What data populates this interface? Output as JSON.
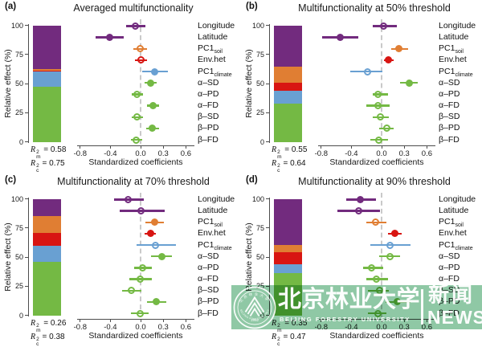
{
  "chart_data": {
    "type": "combo-stackedbar-forestplot",
    "x_axis": {
      "label": "Standardized coefficients",
      "ticks": [
        -0.8,
        -0.4,
        0.0,
        0.3,
        0.6
      ],
      "tick_labels": [
        "-0.8",
        "-0.4",
        "0.0",
        "0.3",
        "0.6"
      ],
      "range": [
        -0.9,
        0.65
      ]
    },
    "y_axis_bar": {
      "label": "Relative effect (%)",
      "ticks": [
        0,
        25,
        50,
        75,
        100
      ]
    },
    "r2_syntax": {
      "base": "R",
      "sup": "2",
      "sub_marginal": "m",
      "sub_conditional": "c",
      "eq": "="
    },
    "colors": {
      "green": "#74B944",
      "blue": "#69A0D2",
      "red": "#D81512",
      "orange": "#E07E33",
      "purple": "#722B7E",
      "zero_line": "#C9C9C9",
      "axis": "#4D4D4D"
    },
    "predictors": [
      {
        "label": "Longitude",
        "sub": "",
        "color": "purple"
      },
      {
        "label": "Latitude",
        "sub": "",
        "color": "purple"
      },
      {
        "label": "PC1",
        "sub": "soil",
        "color": "orange"
      },
      {
        "label": "Env.het",
        "sub": "",
        "color": "red"
      },
      {
        "label": "PC1",
        "sub": "climate",
        "color": "blue"
      },
      {
        "label": "α–SD",
        "sub": "",
        "color": "green"
      },
      {
        "label": "α–PD",
        "sub": "",
        "color": "green"
      },
      {
        "label": "α–FD",
        "sub": "",
        "color": "green"
      },
      {
        "label": "β–SD",
        "sub": "",
        "color": "green"
      },
      {
        "label": "β–PD",
        "sub": "",
        "color": "green"
      },
      {
        "label": "β–FD",
        "sub": "",
        "color": "green"
      }
    ],
    "panels": [
      {
        "tag": "(a)",
        "title": "Averaged multifunctionality",
        "r2_marginal": "0.58",
        "r2_conditional": "0.75",
        "bar_bottom_to_top": [
          {
            "key": "green",
            "pct": 47
          },
          {
            "key": "blue",
            "pct": 13.3
          },
          {
            "key": "red",
            "pct": 0.7
          },
          {
            "key": "orange",
            "pct": 1.5
          },
          {
            "key": "purple",
            "pct": 37.5
          }
        ],
        "effects": [
          {
            "est": -0.07,
            "lo": -0.19,
            "hi": 0.06,
            "filled": false
          },
          {
            "est": -0.41,
            "lo": -0.6,
            "hi": -0.22,
            "filled": true
          },
          {
            "est": -0.01,
            "lo": -0.1,
            "hi": 0.08,
            "filled": false
          },
          {
            "est": 0.0,
            "lo": -0.07,
            "hi": 0.08,
            "filled": false
          },
          {
            "est": 0.19,
            "lo": 0.02,
            "hi": 0.36,
            "filled": true
          },
          {
            "est": 0.13,
            "lo": 0.05,
            "hi": 0.21,
            "filled": true
          },
          {
            "est": -0.05,
            "lo": -0.12,
            "hi": 0.03,
            "filled": false
          },
          {
            "est": 0.17,
            "lo": 0.08,
            "hi": 0.25,
            "filled": true
          },
          {
            "est": -0.05,
            "lo": -0.12,
            "hi": 0.03,
            "filled": false
          },
          {
            "est": 0.15,
            "lo": 0.07,
            "hi": 0.24,
            "filled": true
          },
          {
            "est": -0.06,
            "lo": -0.13,
            "hi": 0.02,
            "filled": false
          }
        ]
      },
      {
        "tag": "(b)",
        "title": "Multifunctionality at 50% threshold",
        "r2_marginal": "0.55",
        "r2_conditional": "0.64",
        "bar_bottom_to_top": [
          {
            "key": "green",
            "pct": 33
          },
          {
            "key": "blue",
            "pct": 10.5
          },
          {
            "key": "red",
            "pct": 7
          },
          {
            "key": "orange",
            "pct": 14
          },
          {
            "key": "purple",
            "pct": 35.5
          }
        ],
        "effects": [
          {
            "est": 0.03,
            "lo": -0.12,
            "hi": 0.2,
            "filled": false
          },
          {
            "est": -0.55,
            "lo": -0.79,
            "hi": -0.31,
            "filled": true
          },
          {
            "est": 0.23,
            "lo": 0.13,
            "hi": 0.35,
            "filled": true
          },
          {
            "est": 0.09,
            "lo": 0.03,
            "hi": 0.16,
            "filled": true
          },
          {
            "est": -0.19,
            "lo": -0.42,
            "hi": 0.01,
            "filled": false
          },
          {
            "est": 0.37,
            "lo": 0.24,
            "hi": 0.48,
            "filled": true
          },
          {
            "est": -0.05,
            "lo": -0.12,
            "hi": 0.08,
            "filled": false
          },
          {
            "est": -0.05,
            "lo": -0.2,
            "hi": 0.11,
            "filled": false
          },
          {
            "est": -0.02,
            "lo": -0.12,
            "hi": 0.1,
            "filled": false
          },
          {
            "est": 0.07,
            "lo": -0.03,
            "hi": 0.16,
            "filled": false
          },
          {
            "est": -0.04,
            "lo": -0.15,
            "hi": 0.08,
            "filled": false
          }
        ]
      },
      {
        "tag": "(c)",
        "title": "Multifunctionality at 70% threshold",
        "r2_marginal": "0.26",
        "r2_conditional": "0.38",
        "bar_bottom_to_top": [
          {
            "key": "green",
            "pct": 46
          },
          {
            "key": "blue",
            "pct": 13.5
          },
          {
            "key": "red",
            "pct": 11
          },
          {
            "key": "orange",
            "pct": 15
          },
          {
            "key": "purple",
            "pct": 14.5
          }
        ],
        "effects": [
          {
            "est": -0.16,
            "lo": -0.35,
            "hi": 0.04,
            "filled": false
          },
          {
            "est": 0.0,
            "lo": -0.28,
            "hi": 0.32,
            "filled": false
          },
          {
            "est": 0.19,
            "lo": 0.06,
            "hi": 0.31,
            "filled": true
          },
          {
            "est": 0.13,
            "lo": 0.05,
            "hi": 0.2,
            "filled": true
          },
          {
            "est": 0.2,
            "lo": -0.05,
            "hi": 0.47,
            "filled": false
          },
          {
            "est": 0.28,
            "lo": 0.14,
            "hi": 0.42,
            "filled": true
          },
          {
            "est": 0.03,
            "lo": -0.09,
            "hi": 0.15,
            "filled": false
          },
          {
            "est": -0.01,
            "lo": -0.15,
            "hi": 0.15,
            "filled": false
          },
          {
            "est": -0.12,
            "lo": -0.25,
            "hi": 0.01,
            "filled": false
          },
          {
            "est": 0.21,
            "lo": 0.09,
            "hi": 0.34,
            "filled": true
          },
          {
            "est": -0.01,
            "lo": -0.13,
            "hi": 0.11,
            "filled": false
          }
        ]
      },
      {
        "tag": "(d)",
        "title": "Multifunctionality at 90% threshold",
        "r2_marginal": "0.35",
        "r2_conditional": "0.47",
        "bar_bottom_to_top": [
          {
            "key": "green",
            "pct": 36
          },
          {
            "key": "blue",
            "pct": 8
          },
          {
            "key": "red",
            "pct": 10.5
          },
          {
            "key": "orange",
            "pct": 6
          },
          {
            "key": "purple",
            "pct": 39.5
          }
        ],
        "effects": [
          {
            "est": -0.28,
            "lo": -0.47,
            "hi": -0.07,
            "filled": true
          },
          {
            "est": -0.3,
            "lo": -0.58,
            "hi": -0.02,
            "filled": false
          },
          {
            "est": -0.08,
            "lo": -0.2,
            "hi": 0.06,
            "filled": false
          },
          {
            "est": 0.18,
            "lo": 0.08,
            "hi": 0.27,
            "filled": true
          },
          {
            "est": 0.11,
            "lo": -0.15,
            "hi": 0.38,
            "filled": false
          },
          {
            "est": 0.11,
            "lo": -0.03,
            "hi": 0.25,
            "filled": false
          },
          {
            "est": -0.13,
            "lo": -0.24,
            "hi": 0.02,
            "filled": false
          },
          {
            "est": -0.07,
            "lo": -0.2,
            "hi": 0.09,
            "filled": false
          },
          {
            "est": -0.03,
            "lo": -0.18,
            "hi": 0.1,
            "filled": false
          },
          {
            "est": 0.21,
            "lo": 0.05,
            "hi": 0.38,
            "filled": true
          },
          {
            "est": -0.05,
            "lo": -0.18,
            "hi": 0.06,
            "filled": false
          }
        ]
      }
    ]
  },
  "watermark": {
    "band_color": "#8FC8A5",
    "cn_name": "北京林业大学",
    "en_name": "BEIJING FORESTRY UNIVERSITY",
    "news_cn": "新闻",
    "news_en": "NEWS",
    "seal_year": "1952"
  }
}
